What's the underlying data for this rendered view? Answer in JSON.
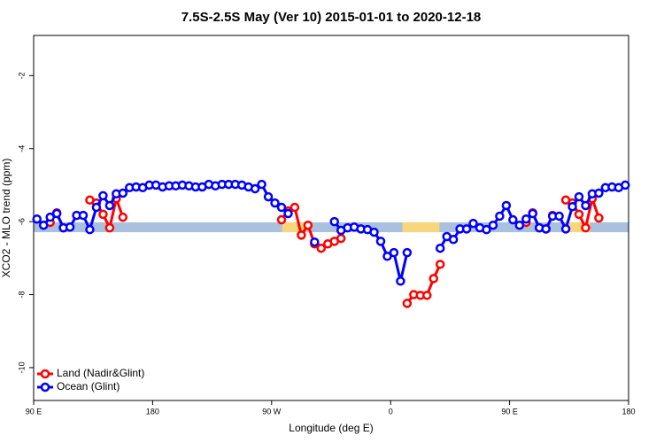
{
  "chart_data": {
    "type": "line",
    "title": "7.5S-2.5S May (Ver 10)   2015-01-01 to 2020-12-18",
    "xlabel": "Longitude (deg E)",
    "ylabel": "XCO2 - MLO trend (ppm)",
    "xlim": [
      90,
      540
    ],
    "ylim": [
      -10.9,
      -0.9
    ],
    "xticks": [
      {
        "value": 90,
        "label": "90 E"
      },
      180,
      {
        "value": 270,
        "label": "90 W"
      },
      {
        "value": 360,
        "label": "0"
      },
      {
        "value": 450,
        "label": "90 E"
      },
      {
        "value": 540,
        "label": "180"
      }
    ],
    "yticks": [
      -10,
      -8,
      -6,
      -4,
      -2
    ],
    "legend": "bottom-left",
    "band": {
      "y": [
        -6.02,
        -6.29
      ],
      "color": "#a9c0de",
      "segments": [
        {
          "x": [
            278,
            297
          ],
          "color": "#f7d67c"
        },
        {
          "x": [
            369,
            397
          ],
          "color": "#f7d67c"
        },
        {
          "x": [
            493,
            511
          ],
          "color": "#f7d67c"
        }
      ]
    },
    "x": [
      92.5,
      97.5,
      102.5,
      107.5,
      112.5,
      117.5,
      122.5,
      127.5,
      132.5,
      137.5,
      142.5,
      147.5,
      152.5,
      157.5,
      162.5,
      167.5,
      172.5,
      177.5,
      182.5,
      187.5,
      192.5,
      197.5,
      202.5,
      207.5,
      212.5,
      217.5,
      222.5,
      227.5,
      232.5,
      237.5,
      242.5,
      247.5,
      252.5,
      257.5,
      262.5,
      267.5,
      272.5,
      277.5,
      282.5,
      287.5,
      292.5,
      297.5,
      302.5,
      307.5,
      312.5,
      317.5,
      322.5,
      327.5,
      332.5,
      337.5,
      342.5,
      347.5,
      352.5,
      357.5,
      362.5,
      367.5,
      372.5,
      377.5,
      382.5,
      387.5,
      392.5,
      397.5,
      402.5,
      407.5,
      412.5,
      417.5,
      422.5,
      427.5,
      432.5,
      437.5,
      442.5,
      447.5,
      452.5,
      457.5,
      462.5,
      467.5,
      472.5,
      477.5,
      482.5,
      487.5,
      492.5,
      497.5,
      502.5,
      507.5,
      512.5,
      517.5,
      522.5,
      527.5,
      532.5,
      537.5
    ],
    "series": [
      {
        "name": "Land (Nadir&Glint)",
        "color": "#ff0000",
        "values": [
          null,
          null,
          -6.02,
          -5.76,
          -6.17,
          null,
          null,
          null,
          -5.41,
          -5.49,
          -5.8,
          -6.17,
          -5.37,
          -5.88,
          null,
          null,
          null,
          null,
          null,
          null,
          null,
          null,
          null,
          null,
          null,
          null,
          null,
          null,
          null,
          null,
          null,
          null,
          null,
          null,
          null,
          null,
          null,
          -5.95,
          -5.71,
          -5.61,
          -6.37,
          -6.1,
          -6.61,
          -6.73,
          -6.61,
          -6.54,
          -6.46,
          null,
          null,
          null,
          null,
          null,
          null,
          null,
          null,
          null,
          -8.24,
          -8.0,
          -8.02,
          -8.02,
          -7.56,
          -7.17,
          null,
          null,
          null,
          null,
          null,
          null,
          null,
          null,
          null,
          null,
          null,
          null,
          -6.02,
          -5.76,
          -6.17,
          -6.2,
          -5.83,
          null,
          -5.41,
          -5.49,
          -5.8,
          -6.17,
          -5.37,
          -5.9,
          null,
          null,
          null,
          null
        ]
      },
      {
        "name": "Ocean (Glint)",
        "color": "#0000ff",
        "values": [
          -5.93,
          -6.1,
          -5.88,
          -5.78,
          -6.17,
          -6.15,
          -5.83,
          -5.83,
          -6.22,
          -5.61,
          -5.29,
          -5.56,
          -5.24,
          -5.22,
          -5.07,
          -5.05,
          -5.07,
          -5.0,
          -5.0,
          -5.05,
          -5.02,
          -5.02,
          -5.0,
          -5.02,
          -5.05,
          -5.05,
          -4.98,
          -5.02,
          -4.98,
          -4.98,
          -4.98,
          -5.0,
          -5.05,
          -5.1,
          -4.98,
          -5.32,
          -5.49,
          -5.61,
          -5.78,
          null,
          null,
          null,
          -6.56,
          null,
          null,
          -6.0,
          -6.24,
          -6.17,
          -6.15,
          -6.2,
          -6.22,
          -6.29,
          -6.54,
          -6.95,
          -6.85,
          -7.63,
          -6.85,
          null,
          null,
          null,
          null,
          -6.73,
          -6.41,
          -6.49,
          -6.2,
          -6.2,
          -6.05,
          -6.17,
          -6.22,
          -6.1,
          -5.85,
          -5.56,
          -5.95,
          -6.1,
          -5.93,
          -5.78,
          -6.17,
          -6.2,
          -5.85,
          -5.85,
          -6.2,
          -5.59,
          -5.32,
          -5.56,
          -5.24,
          -5.22,
          -5.07,
          -5.05,
          -5.07,
          -5.0
        ]
      }
    ]
  }
}
